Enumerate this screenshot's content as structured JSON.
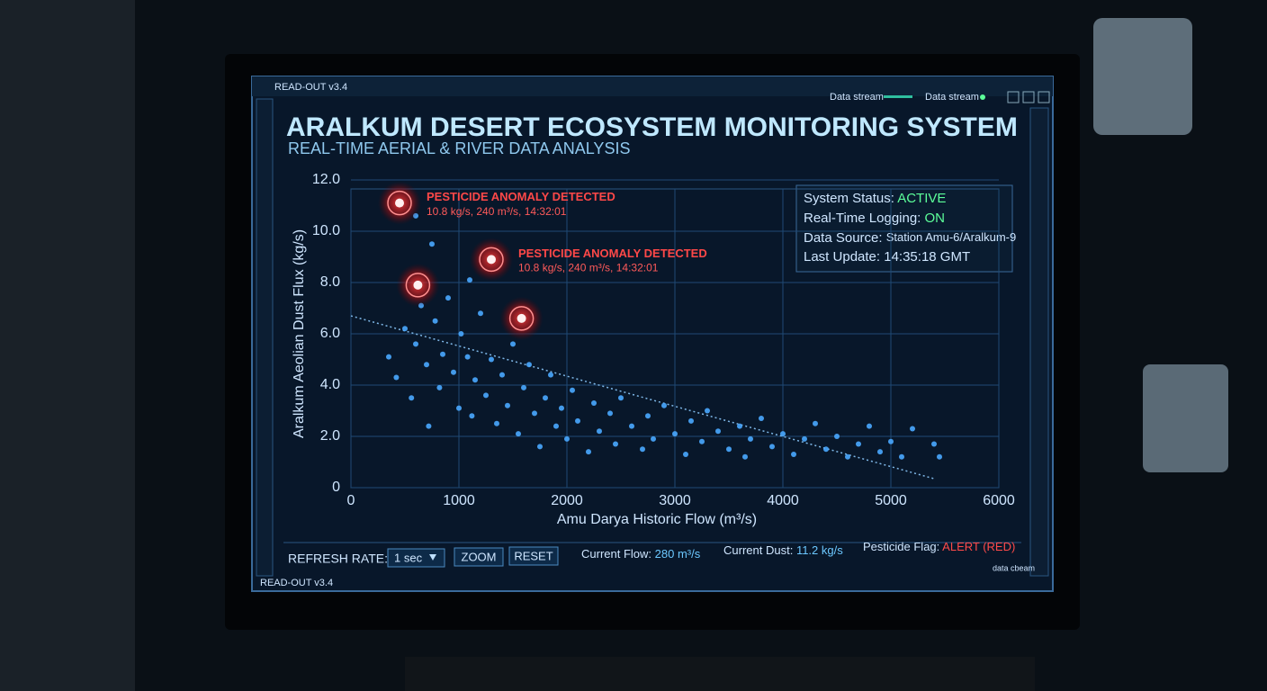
{
  "window": {
    "title": "READ-OUT v3.4",
    "stream_labels": [
      "Data stream",
      "Data stream"
    ],
    "footer_left": "READ-OUT v3.4",
    "footer_right": "data cbeam"
  },
  "header": {
    "title": "ARALKUM DESERT ECOSYSTEM MONITORING SYSTEM",
    "subtitle": "REAL-TIME AERIAL & RIVER DATA ANALYSIS"
  },
  "status": [
    {
      "label": "System Status:",
      "value": "ACTIVE"
    },
    {
      "label": "Real-Time Logging:",
      "value": "ON"
    },
    {
      "label": "Data Source:",
      "value": "Station Amu-6/Aralkum-9"
    },
    {
      "label": "Last Update:",
      "value": "14:35:18 GMT"
    }
  ],
  "controls": {
    "refresh_label": "REFRESH RATE:",
    "refresh_value": "1 sec",
    "zoom": "ZOOM",
    "reset": "RESET",
    "readouts": [
      {
        "label": "Current Flow:",
        "value": "280 m³/s"
      },
      {
        "label": "Current Dust:",
        "value": "11.2 kg/s"
      },
      {
        "label": "Pesticide Flag:",
        "value": "ALERT (RED)"
      }
    ]
  },
  "chart_data": {
    "type": "scatter",
    "x_label": "Amu Darya Historic Flow (m³/s)",
    "y_label": "Aralkum Aeolian Dust Flux (kg/s)",
    "xlim": [
      0,
      6000
    ],
    "xticks": [
      0,
      1000,
      2000,
      3000,
      4000,
      5000,
      6000
    ],
    "ylim": [
      0,
      12
    ],
    "yticks": [
      0,
      {
        "value": 2,
        "label": "2.0"
      },
      {
        "value": 4,
        "label": "4.0"
      },
      {
        "value": 6,
        "label": "6.0"
      },
      {
        "value": 8,
        "label": "8.0"
      },
      {
        "value": 10,
        "label": "10.0"
      },
      {
        "value": 12,
        "label": "12.0"
      }
    ],
    "grid": true,
    "series": [
      {
        "color": "#4aa8ff",
        "x": [
          350,
          420,
          500,
          560,
          600,
          650,
          700,
          720,
          780,
          820,
          850,
          900,
          950,
          1000,
          1020,
          1080,
          1120,
          1150,
          1200,
          1250,
          1300,
          1350,
          1400,
          1450,
          1500,
          1550,
          1600,
          1650,
          1700,
          1750,
          1800,
          1850,
          1900,
          1950,
          2000,
          2050,
          2100,
          2200,
          2250,
          2300,
          2400,
          2450,
          2500,
          2600,
          2700,
          2750,
          2800,
          2900,
          3000,
          3100,
          3150,
          3250,
          3300,
          3400,
          3500,
          3600,
          3650,
          3700,
          3800,
          3900,
          4000,
          4100,
          4200,
          4300,
          4400,
          4500,
          4600,
          4700,
          4800,
          4900,
          5000,
          5100,
          5200,
          5400,
          5450,
          750,
          1100,
          600
        ],
        "values": [
          5.1,
          4.3,
          6.2,
          3.5,
          5.6,
          7.1,
          4.8,
          2.4,
          6.5,
          3.9,
          5.2,
          7.4,
          4.5,
          3.1,
          6.0,
          5.1,
          2.8,
          4.2,
          6.8,
          3.6,
          5.0,
          2.5,
          4.4,
          3.2,
          5.6,
          2.1,
          3.9,
          4.8,
          2.9,
          1.6,
          3.5,
          4.4,
          2.4,
          3.1,
          1.9,
          3.8,
          2.6,
          1.4,
          3.3,
          2.2,
          2.9,
          1.7,
          3.5,
          2.4,
          1.5,
          2.8,
          1.9,
          3.2,
          2.1,
          1.3,
          2.6,
          1.8,
          3.0,
          2.2,
          1.5,
          2.4,
          1.2,
          1.9,
          2.7,
          1.6,
          2.1,
          1.3,
          1.9,
          2.5,
          1.5,
          2.0,
          1.2,
          1.7,
          2.4,
          1.4,
          1.8,
          1.2,
          2.3,
          1.7,
          1.2,
          9.5,
          8.1,
          10.6
        ]
      },
      {
        "color": "#ff3030",
        "x": [
          450,
          620,
          1300,
          1580
        ],
        "values": [
          11.1,
          7.9,
          8.9,
          6.6
        ]
      }
    ],
    "trend": {
      "color": "#7fb8e8",
      "x": [
        0,
        5400
      ],
      "values": [
        6.7,
        0.35
      ]
    },
    "annotations": [
      {
        "text": "PESTICIDE ANOMALY DETECTED",
        "detail": "10.8 kg/s, 240 m³/s, 14:32:01"
      },
      {
        "text": "PESTICIDE ANOMALY DETECTED",
        "detail": "10.8 kg/s, 240 m³/s, 14:32:01"
      }
    ]
  }
}
